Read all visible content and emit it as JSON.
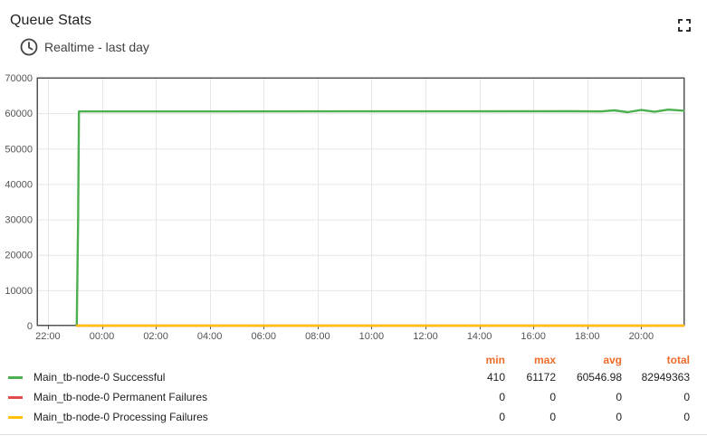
{
  "widget": {
    "title": "Queue Stats",
    "timewindow_label": "Realtime - last day",
    "fullscreen_icon": "fullscreen-icon",
    "clock_icon": "clock-icon"
  },
  "chart_data": {
    "type": "line",
    "title": "",
    "xlabel": "",
    "ylabel": "",
    "ylim": [
      0,
      70000
    ],
    "y_ticks": [
      "0",
      "10000",
      "20000",
      "30000",
      "40000",
      "50000",
      "60000",
      "70000"
    ],
    "x_ticks": [
      "22:00",
      "00:00",
      "02:00",
      "04:00",
      "06:00",
      "08:00",
      "10:00",
      "12:00",
      "14:00",
      "16:00",
      "18:00",
      "20:00"
    ],
    "x_range_hours": [
      -2.4,
      21.6
    ],
    "grid": true,
    "legend_position": "bottom",
    "series": [
      {
        "name": "Main_tb-node-0 Successful",
        "color": "#4caf50",
        "points": [
          [
            -0.95,
            0
          ],
          [
            -0.93,
            410
          ],
          [
            -0.88,
            30000
          ],
          [
            -0.85,
            60500
          ],
          [
            17.5,
            60550
          ],
          [
            18.5,
            60500
          ],
          [
            19.0,
            60800
          ],
          [
            19.5,
            60300
          ],
          [
            20.0,
            60900
          ],
          [
            20.5,
            60400
          ],
          [
            21.0,
            61000
          ],
          [
            21.6,
            60700
          ]
        ]
      },
      {
        "name": "Main_tb-node-0 Permanent Failures",
        "color": "#e04c4c",
        "points": [
          [
            -0.95,
            0
          ],
          [
            21.6,
            0
          ]
        ]
      },
      {
        "name": "Main_tb-node-0 Processing Failures",
        "color": "#ffc107",
        "points": [
          [
            -0.95,
            0
          ],
          [
            21.6,
            0
          ]
        ]
      }
    ]
  },
  "legend": {
    "headers": {
      "min": "min",
      "max": "max",
      "avg": "avg",
      "total": "total"
    },
    "rows": [
      {
        "label": "Main_tb-node-0 Successful",
        "color": "#4caf50",
        "min": "410",
        "max": "61172",
        "avg": "60546.98",
        "total": "82949363"
      },
      {
        "label": "Main_tb-node-0 Permanent Failures",
        "color": "#e04c4c",
        "min": "0",
        "max": "0",
        "avg": "0",
        "total": "0"
      },
      {
        "label": "Main_tb-node-0 Processing Failures",
        "color": "#ffc107",
        "min": "0",
        "max": "0",
        "avg": "0",
        "total": "0"
      }
    ]
  }
}
